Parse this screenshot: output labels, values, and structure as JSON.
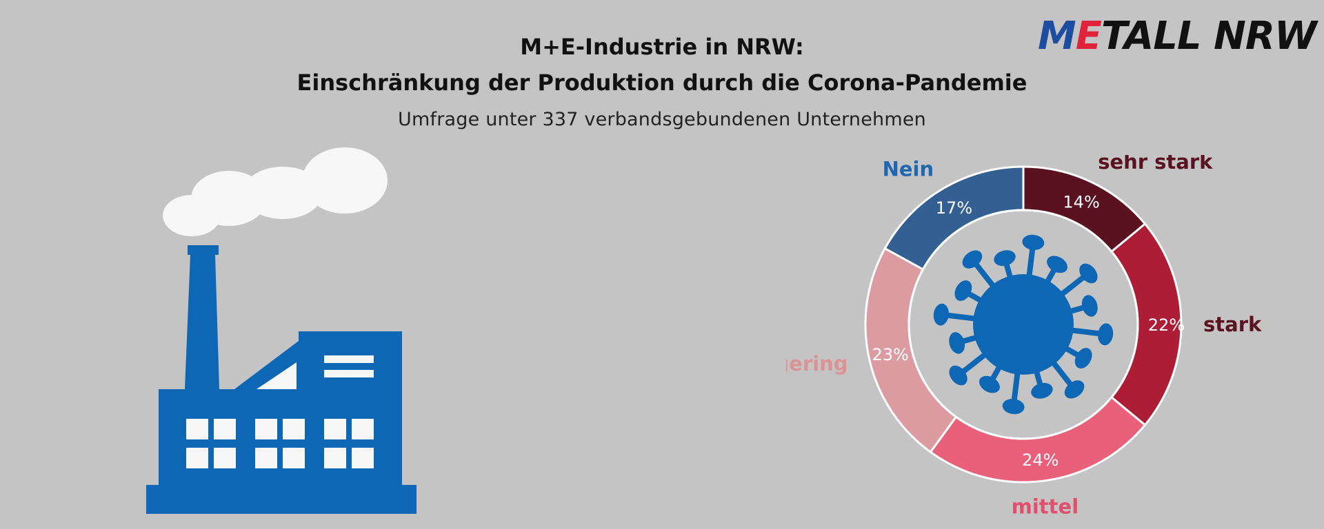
{
  "header": {
    "title_line1": "M+E-Industrie in NRW:",
    "title_line2": "Einschränkung der Produktion durch die Corona-Pandemie",
    "subtitle": "Umfrage unter 337 verbandsgebundenen Unternehmen"
  },
  "logo": {
    "m": "M",
    "e": "E",
    "rest": "TALL NRW"
  },
  "colors": {
    "background": "#c4c4c4",
    "factory": "#0d67b5",
    "smoke": "#f7f7f7",
    "virus": "#0d67b5"
  },
  "icons": {
    "factory": "factory-icon",
    "smoke": "smoke-cloud-icon",
    "virus": "coronavirus-icon"
  },
  "chart_data": {
    "type": "pie",
    "donut": true,
    "categories": [
      "sehr stark",
      "stark",
      "mittel",
      "gering",
      "Nein"
    ],
    "values": [
      14,
      22,
      24,
      23,
      17
    ],
    "value_labels": [
      "14%",
      "22%",
      "24%",
      "23%",
      "17%"
    ],
    "colors": [
      "#5a1220",
      "#ad1d36",
      "#e8607a",
      "#dc9ba0",
      "#345f93"
    ],
    "label_colors": [
      "#5a1220",
      "#5a1220",
      "#e0506c",
      "#dc9396",
      "#1f68b1"
    ],
    "legend": "labels outside ring",
    "start": "top, clockwise"
  }
}
